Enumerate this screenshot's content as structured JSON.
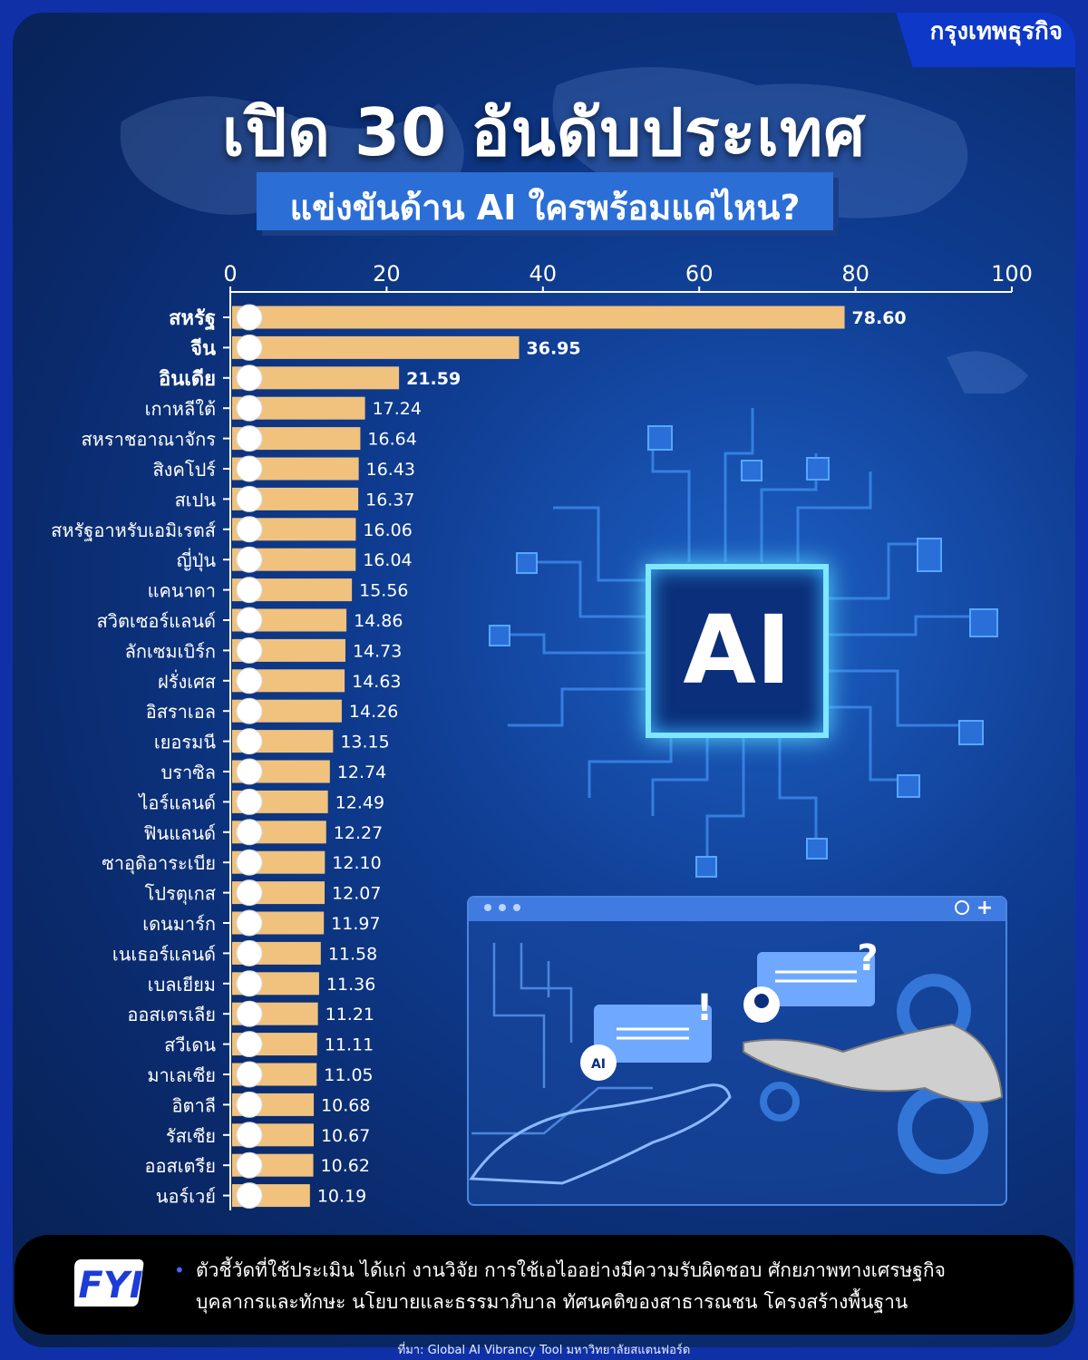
{
  "brand": "กรุงเทพธุรกิจ",
  "title": "เปิด 30 อันดับประเทศ",
  "subtitle": "แข่งขันด้าน AI ใครพร้อมแค่ไหน?",
  "illustration": {
    "chip_label": "AI",
    "bubble_label": "AI",
    "bubble_marks": [
      "!",
      "?"
    ],
    "window_control": "+"
  },
  "chart_data": {
    "type": "bar",
    "orientation": "horizontal",
    "xlim": [
      0,
      100
    ],
    "xticks": [
      0,
      20,
      40,
      60,
      80,
      100
    ],
    "bar_color": "#f1c27d",
    "bold_top_labels": 3,
    "categories": [
      "สหรัฐ",
      "จีน",
      "อินเดีย",
      "เกาหลีใต้",
      "สหราชอาณาจักร",
      "สิงคโปร์",
      "สเปน",
      "สหรัฐอาหรับเอมิเรตส์",
      "ญี่ปุ่น",
      "แคนาดา",
      "สวิตเซอร์แลนด์",
      "ลักเซมเบิร์ก",
      "ฝรั่งเศส",
      "อิสราเอล",
      "เยอรมนี",
      "บราซิล",
      "ไอร์แลนด์",
      "ฟินแลนด์",
      "ซาอุดิอาระเบีย",
      "โปรตุเกส",
      "เดนมาร์ก",
      "เนเธอร์แลนด์",
      "เบลเยียม",
      "ออสเตรเลีย",
      "สวีเดน",
      "มาเลเซีย",
      "อิตาลี",
      "รัสเซีย",
      "ออสเตรีย",
      "นอร์เวย์"
    ],
    "values": [
      78.6,
      36.95,
      21.59,
      17.24,
      16.64,
      16.43,
      16.37,
      16.06,
      16.04,
      15.56,
      14.86,
      14.73,
      14.63,
      14.26,
      13.15,
      12.74,
      12.49,
      12.27,
      12.1,
      12.07,
      11.97,
      11.58,
      11.36,
      11.21,
      11.11,
      11.05,
      10.68,
      10.67,
      10.62,
      10.19
    ],
    "value_labels": [
      "78.60",
      "36.95",
      "21.59",
      "17.24",
      "16.64",
      "16.43",
      "16.37",
      "16.06",
      "16.04",
      "15.56",
      "14.86",
      "14.73",
      "14.63",
      "14.26",
      "13.15",
      "12.74",
      "12.49",
      "12.27",
      "12.10",
      "12.07",
      "11.97",
      "11.58",
      "11.36",
      "11.21",
      "11.11",
      "11.05",
      "10.68",
      "10.67",
      "10.62",
      "10.19"
    ],
    "flag_icons": [
      "us-flag-icon",
      "china-flag-icon",
      "india-flag-icon",
      "korea-flag-icon",
      "uk-flag-icon",
      "singapore-flag-icon",
      "spain-flag-icon",
      "uae-flag-icon",
      "japan-flag-icon",
      "canada-flag-icon",
      "switzerland-flag-icon",
      "luxembourg-flag-icon",
      "france-flag-icon",
      "israel-flag-icon",
      "germany-flag-icon",
      "brazil-flag-icon",
      "ireland-flag-icon",
      "finland-flag-icon",
      "saudi-flag-icon",
      "portugal-flag-icon",
      "denmark-flag-icon",
      "netherlands-flag-icon",
      "belgium-flag-icon",
      "australia-flag-icon",
      "sweden-flag-icon",
      "malaysia-flag-icon",
      "italy-flag-icon",
      "russia-flag-icon",
      "austria-flag-icon",
      "norway-flag-icon"
    ]
  },
  "fyi": {
    "logo": "FYI",
    "bullet": "•",
    "line1": "ตัวชี้วัดที่ใช้ประเมิน ได้แก่ งานวิจัย การใช้เอไออย่างมีความรับผิดชอบ ศักยภาพทางเศรษฐกิจ",
    "line2": "บุคลากรและทักษะ นโยบายและธรรมาภิบาล ทัศนคติของสาธารณชน โครงสร้างพื้นฐาน"
  },
  "source": "ที่มา: Global AI Vibrancy Tool มหาวิทยาลัยสแตนฟอร์ด"
}
